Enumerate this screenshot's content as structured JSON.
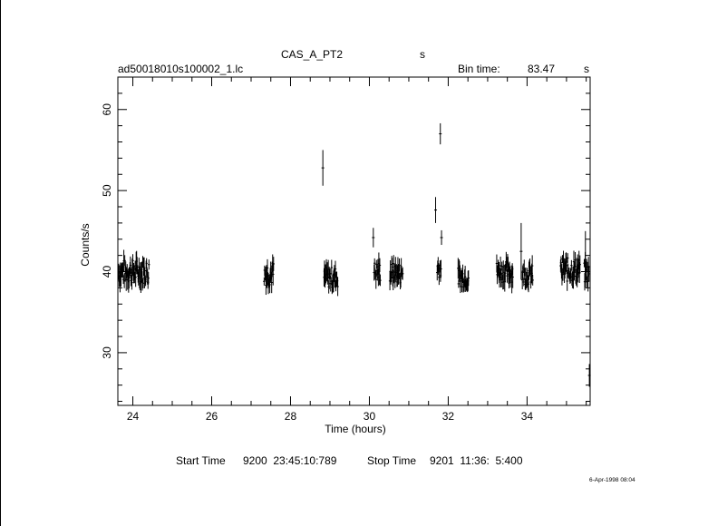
{
  "header": {
    "object": "CAS_A_PT2",
    "unit_marker": "s",
    "filename": "ad50018010s100002_1.lc",
    "bin_label": "Bin time:",
    "bin_value": "83.47",
    "bin_unit": "s"
  },
  "footer": {
    "start_label": "Start Time",
    "start_value": "9200  23:45:10:789",
    "stop_label": "Stop Time",
    "stop_value": "9201  11:36:  5:400",
    "stamp": "6-Apr-1998 08:04"
  },
  "chart_data": {
    "type": "scatter",
    "xlabel": "Time (hours)",
    "ylabel": "Counts/s",
    "xlim": [
      23.62,
      35.6
    ],
    "ylim": [
      23.5,
      64
    ],
    "x_ticks": [
      24,
      26,
      28,
      30,
      32,
      34
    ],
    "y_ticks": [
      30,
      40,
      50,
      60
    ],
    "grid": false,
    "colors": {
      "axis": "#000000",
      "data": "#000000"
    },
    "segments": [
      {
        "x_start": 23.64,
        "x_end": 24.42,
        "y_center": 40.0,
        "y_spread": 1.5
      },
      {
        "x_start": 27.33,
        "x_end": 27.58,
        "y_center": 39.8,
        "y_spread": 1.5
      },
      {
        "x_start": 28.85,
        "x_end": 29.2,
        "y_center": 39.3,
        "y_spread": 1.3
      },
      {
        "x_start": 30.12,
        "x_end": 30.28,
        "y_center": 40.0,
        "y_spread": 1.3
      },
      {
        "x_start": 30.52,
        "x_end": 30.85,
        "y_center": 39.8,
        "y_spread": 1.3
      },
      {
        "x_start": 31.72,
        "x_end": 31.82,
        "y_center": 40.5,
        "y_spread": 1.2
      },
      {
        "x_start": 32.25,
        "x_end": 32.52,
        "y_center": 39.3,
        "y_spread": 1.2
      },
      {
        "x_start": 33.23,
        "x_end": 33.65,
        "y_center": 40.0,
        "y_spread": 1.3
      },
      {
        "x_start": 33.88,
        "x_end": 34.15,
        "y_center": 39.6,
        "y_spread": 1.2
      },
      {
        "x_start": 34.85,
        "x_end": 35.35,
        "y_center": 40.2,
        "y_spread": 1.5
      },
      {
        "x_start": 35.45,
        "x_end": 35.58,
        "y_center": 39.8,
        "y_spread": 1.3
      }
    ],
    "points": [
      {
        "x": 28.82,
        "y": 52.8,
        "err": 2.2
      },
      {
        "x": 30.1,
        "y": 44.2,
        "err": 1.2
      },
      {
        "x": 31.68,
        "y": 47.6,
        "err": 1.6
      },
      {
        "x": 31.8,
        "y": 57.0,
        "err": 1.3
      },
      {
        "x": 31.83,
        "y": 44.2,
        "err": 0.9
      },
      {
        "x": 33.85,
        "y": 42.5,
        "err": 3.5
      },
      {
        "x": 35.48,
        "y": 41.5,
        "err": 3.5
      },
      {
        "x": 35.58,
        "y": 27.2,
        "err": 1.4
      }
    ]
  }
}
